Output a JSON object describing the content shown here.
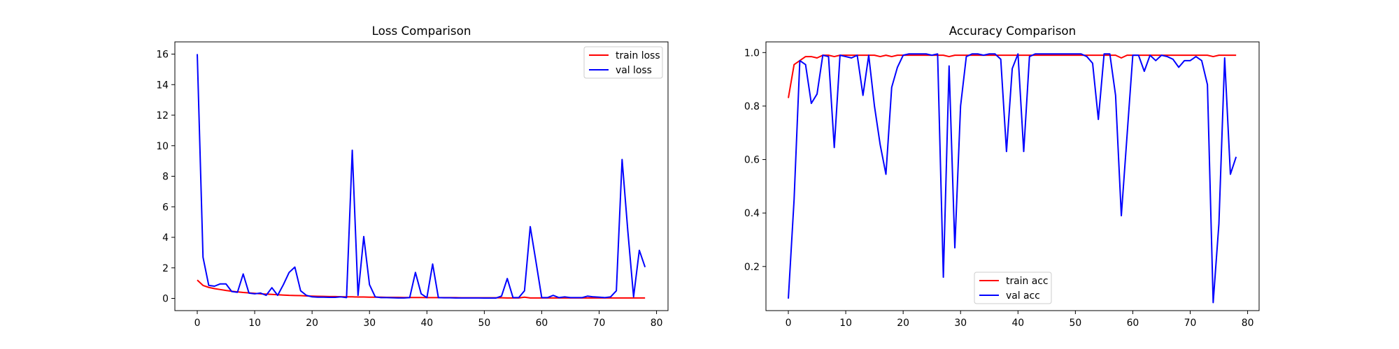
{
  "chart_data": [
    {
      "type": "line",
      "title": "Loss Comparison",
      "xlabel": "",
      "ylabel": "",
      "xlim": [
        -3.9,
        82.0
      ],
      "ylim": [
        -0.8,
        16.8
      ],
      "xticks": [
        0,
        10,
        20,
        30,
        40,
        50,
        60,
        70,
        80
      ],
      "yticks": [
        0,
        2,
        4,
        6,
        8,
        10,
        12,
        14,
        16
      ],
      "grid": false,
      "legend": "top-right",
      "series": [
        {
          "name": "train loss",
          "color": "#ff0000",
          "x": [
            0,
            1,
            2,
            3,
            4,
            5,
            6,
            7,
            8,
            9,
            10,
            11,
            12,
            13,
            14,
            15,
            16,
            17,
            18,
            19,
            20,
            21,
            22,
            23,
            24,
            25,
            26,
            27,
            28,
            29,
            30,
            31,
            32,
            33,
            34,
            35,
            36,
            37,
            38,
            39,
            40,
            41,
            42,
            43,
            44,
            45,
            46,
            47,
            48,
            49,
            50,
            51,
            52,
            53,
            54,
            55,
            56,
            57,
            58,
            59,
            60,
            61,
            62,
            63,
            64,
            65,
            66,
            67,
            68,
            69,
            70,
            71,
            72,
            73,
            74,
            75,
            76,
            77,
            78
          ],
          "y": [
            1.2,
            0.85,
            0.72,
            0.64,
            0.58,
            0.52,
            0.47,
            0.43,
            0.39,
            0.36,
            0.33,
            0.3,
            0.28,
            0.26,
            0.24,
            0.22,
            0.2,
            0.19,
            0.18,
            0.16,
            0.15,
            0.14,
            0.13,
            0.12,
            0.12,
            0.11,
            0.1,
            0.1,
            0.09,
            0.09,
            0.08,
            0.08,
            0.08,
            0.07,
            0.07,
            0.07,
            0.06,
            0.06,
            0.06,
            0.06,
            0.05,
            0.05,
            0.05,
            0.05,
            0.05,
            0.05,
            0.04,
            0.04,
            0.04,
            0.04,
            0.04,
            0.04,
            0.04,
            0.04,
            0.03,
            0.03,
            0.03,
            0.08,
            0.03,
            0.03,
            0.03,
            0.03,
            0.03,
            0.03,
            0.03,
            0.03,
            0.03,
            0.03,
            0.03,
            0.03,
            0.03,
            0.03,
            0.03,
            0.03,
            0.03,
            0.03,
            0.03,
            0.03,
            0.03
          ]
        },
        {
          "name": "val loss",
          "color": "#0000ff",
          "x": [
            0,
            1,
            2,
            3,
            4,
            5,
            6,
            7,
            8,
            9,
            10,
            11,
            12,
            13,
            14,
            15,
            16,
            17,
            18,
            19,
            20,
            21,
            22,
            23,
            24,
            25,
            26,
            27,
            28,
            29,
            30,
            31,
            32,
            33,
            34,
            35,
            36,
            37,
            38,
            39,
            40,
            41,
            42,
            43,
            44,
            45,
            46,
            47,
            48,
            49,
            50,
            51,
            52,
            53,
            54,
            55,
            56,
            57,
            58,
            59,
            60,
            61,
            62,
            63,
            64,
            65,
            66,
            67,
            68,
            69,
            70,
            71,
            72,
            73,
            74,
            75,
            76,
            77,
            78
          ],
          "y": [
            16.0,
            2.7,
            0.85,
            0.8,
            0.95,
            0.95,
            0.45,
            0.4,
            1.6,
            0.35,
            0.3,
            0.35,
            0.2,
            0.7,
            0.2,
            0.9,
            1.7,
            2.05,
            0.5,
            0.2,
            0.1,
            0.08,
            0.08,
            0.07,
            0.07,
            0.1,
            0.05,
            9.7,
            0.2,
            4.05,
            0.9,
            0.1,
            0.05,
            0.05,
            0.04,
            0.03,
            0.03,
            0.05,
            1.7,
            0.3,
            0.05,
            2.25,
            0.05,
            0.04,
            0.04,
            0.03,
            0.03,
            0.03,
            0.03,
            0.03,
            0.02,
            0.02,
            0.02,
            0.15,
            1.3,
            0.05,
            0.05,
            0.5,
            4.7,
            2.4,
            0.05,
            0.05,
            0.2,
            0.05,
            0.1,
            0.05,
            0.05,
            0.05,
            0.15,
            0.1,
            0.08,
            0.05,
            0.1,
            0.5,
            9.1,
            4.4,
            0.1,
            3.15,
            2.05
          ]
        }
      ]
    },
    {
      "type": "line",
      "title": "Accuracy Comparison",
      "xlabel": "",
      "ylabel": "",
      "xlim": [
        -3.9,
        82.0
      ],
      "ylim": [
        0.035,
        1.04
      ],
      "xticks": [
        0,
        10,
        20,
        30,
        40,
        50,
        60,
        70,
        80
      ],
      "yticks": [
        0.2,
        0.4,
        0.6,
        0.8,
        1.0
      ],
      "grid": false,
      "legend": "bottom-center",
      "series": [
        {
          "name": "train acc",
          "color": "#ff0000",
          "x": [
            0,
            1,
            2,
            3,
            4,
            5,
            6,
            7,
            8,
            9,
            10,
            11,
            12,
            13,
            14,
            15,
            16,
            17,
            18,
            19,
            20,
            21,
            22,
            23,
            24,
            25,
            26,
            27,
            28,
            29,
            30,
            31,
            32,
            33,
            34,
            35,
            36,
            37,
            38,
            39,
            40,
            41,
            42,
            43,
            44,
            45,
            46,
            47,
            48,
            49,
            50,
            51,
            52,
            53,
            54,
            55,
            56,
            57,
            58,
            59,
            60,
            61,
            62,
            63,
            64,
            65,
            66,
            67,
            68,
            69,
            70,
            71,
            72,
            73,
            74,
            75,
            76,
            77,
            78
          ],
          "y": [
            0.83,
            0.955,
            0.97,
            0.985,
            0.985,
            0.98,
            0.99,
            0.99,
            0.985,
            0.99,
            0.99,
            0.99,
            0.99,
            0.99,
            0.99,
            0.99,
            0.985,
            0.99,
            0.985,
            0.99,
            0.99,
            0.99,
            0.99,
            0.99,
            0.99,
            0.99,
            0.99,
            0.99,
            0.985,
            0.99,
            0.99,
            0.99,
            0.99,
            0.99,
            0.99,
            0.99,
            0.99,
            0.99,
            0.99,
            0.99,
            0.99,
            0.99,
            0.99,
            0.99,
            0.99,
            0.99,
            0.99,
            0.99,
            0.99,
            0.99,
            0.99,
            0.99,
            0.99,
            0.99,
            0.99,
            0.99,
            0.99,
            0.99,
            0.98,
            0.99,
            0.99,
            0.99,
            0.99,
            0.99,
            0.99,
            0.99,
            0.99,
            0.99,
            0.99,
            0.99,
            0.99,
            0.99,
            0.99,
            0.99,
            0.985,
            0.99,
            0.99,
            0.99,
            0.99
          ]
        },
        {
          "name": "val acc",
          "color": "#0000ff",
          "x": [
            0,
            1,
            2,
            3,
            4,
            5,
            6,
            7,
            8,
            9,
            10,
            11,
            12,
            13,
            14,
            15,
            16,
            17,
            18,
            19,
            20,
            21,
            22,
            23,
            24,
            25,
            26,
            27,
            28,
            29,
            30,
            31,
            32,
            33,
            34,
            35,
            36,
            37,
            38,
            39,
            40,
            41,
            42,
            43,
            44,
            45,
            46,
            47,
            48,
            49,
            50,
            51,
            52,
            53,
            54,
            55,
            56,
            57,
            58,
            59,
            60,
            61,
            62,
            63,
            64,
            65,
            66,
            67,
            68,
            69,
            70,
            71,
            72,
            73,
            74,
            75,
            76,
            77,
            78
          ],
          "y": [
            0.08,
            0.45,
            0.97,
            0.955,
            0.81,
            0.845,
            0.99,
            0.985,
            0.645,
            0.99,
            0.985,
            0.98,
            0.99,
            0.84,
            0.99,
            0.8,
            0.655,
            0.545,
            0.87,
            0.945,
            0.99,
            0.995,
            0.995,
            0.995,
            0.995,
            0.99,
            0.995,
            0.16,
            0.95,
            0.27,
            0.8,
            0.985,
            0.995,
            0.995,
            0.99,
            0.995,
            0.995,
            0.975,
            0.63,
            0.94,
            0.995,
            0.63,
            0.985,
            0.995,
            0.995,
            0.995,
            0.995,
            0.995,
            0.995,
            0.995,
            0.995,
            0.995,
            0.985,
            0.96,
            0.75,
            0.995,
            0.995,
            0.84,
            0.39,
            0.69,
            0.99,
            0.99,
            0.93,
            0.99,
            0.97,
            0.99,
            0.985,
            0.975,
            0.945,
            0.97,
            0.97,
            0.985,
            0.97,
            0.88,
            0.065,
            0.36,
            0.98,
            0.545,
            0.61
          ]
        }
      ]
    }
  ]
}
